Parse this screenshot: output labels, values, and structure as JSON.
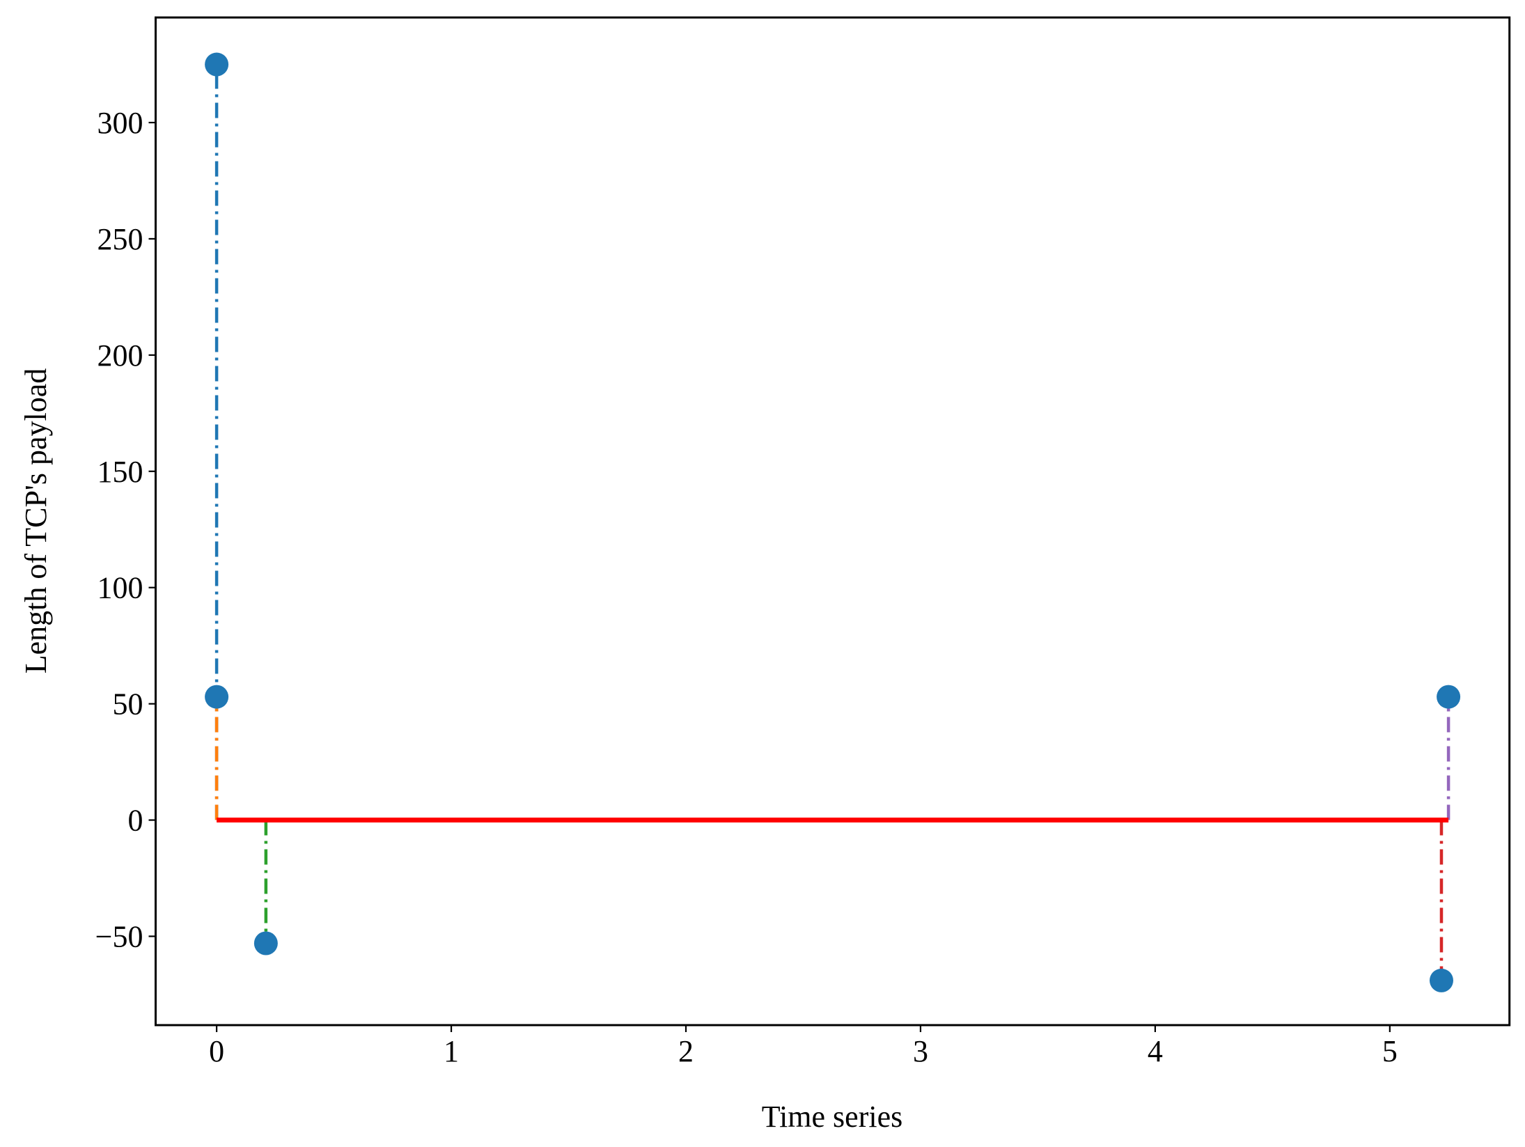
{
  "chart_data": {
    "type": "stem",
    "xlabel": "Time series",
    "ylabel": "Length of TCP's payload",
    "x": [
      0,
      0,
      0.21,
      5.22,
      5.25
    ],
    "values": [
      325,
      53,
      -53,
      -69,
      53
    ],
    "stem_colors": [
      "#1f77b4",
      "#ff7f0e",
      "#2ca02c",
      "#d62728",
      "#9467bd"
    ],
    "marker_color": "#1f77b4",
    "baseline": 0,
    "baseline_color": "#ff0000",
    "xlim": [
      -0.26,
      5.51
    ],
    "ylim": [
      -88.2,
      345.2
    ],
    "xticks": [
      0,
      1,
      2,
      3,
      4,
      5
    ],
    "yticks": [
      {
        "value": -50,
        "label": "−50"
      },
      0,
      50,
      100,
      150,
      200,
      250,
      300
    ]
  }
}
